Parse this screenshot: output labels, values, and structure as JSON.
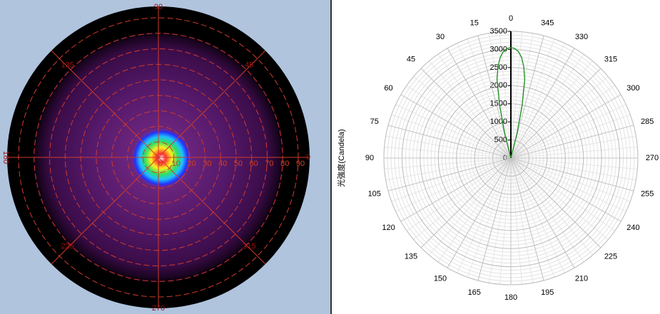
{
  "chart_data": [
    {
      "type": "polar-map",
      "angle_ticks": [
        0,
        45,
        90,
        135,
        180,
        225,
        270,
        315
      ],
      "rlim": [
        0,
        90
      ],
      "rticks": [
        0,
        10,
        20,
        30,
        40,
        50,
        60,
        70,
        80,
        90
      ],
      "line_color": "#d03a2a"
    },
    {
      "type": "polar",
      "ylabel": "光強度(Candela)",
      "angle_ticks": [
        0,
        15,
        30,
        45,
        60,
        75,
        90,
        105,
        120,
        135,
        150,
        165,
        180,
        195,
        210,
        225,
        240,
        255,
        270,
        285,
        300,
        315,
        330,
        345
      ],
      "rlim": [
        0,
        3500
      ],
      "rticks": [
        0,
        500,
        1000,
        1500,
        2000,
        2500,
        3000,
        3500
      ],
      "series": [
        {
          "color": "#1a8a1a",
          "angles": [
            -16,
            -14,
            -12,
            -10,
            -8,
            -6,
            -4,
            -2,
            0,
            2,
            4,
            6,
            8,
            10,
            12,
            14,
            16
          ],
          "values": [
            0,
            700,
            1500,
            2200,
            2550,
            2800,
            2950,
            3030,
            3050,
            3030,
            2950,
            2800,
            2550,
            2200,
            1500,
            700,
            0
          ]
        }
      ]
    }
  ]
}
